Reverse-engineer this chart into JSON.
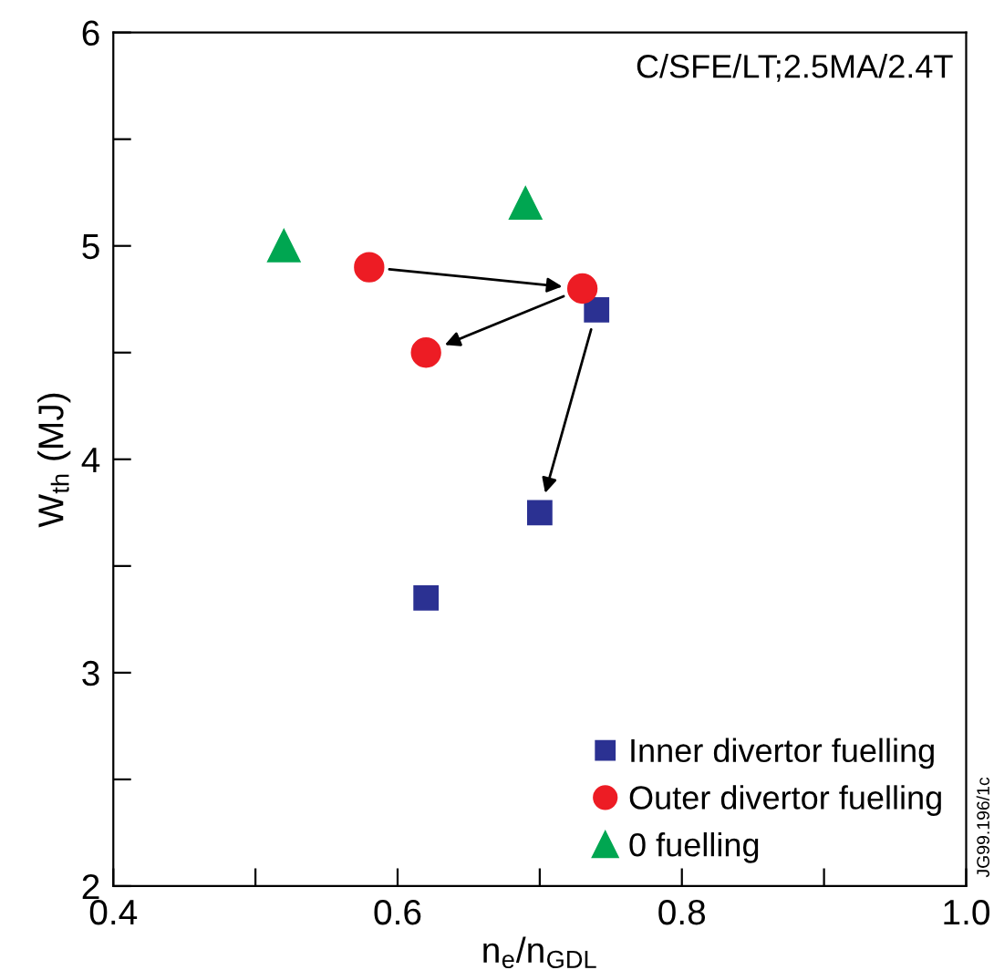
{
  "chart_data": {
    "type": "scatter",
    "xlabel": "n$_{e}$/n$_{GDL}$",
    "ylabel": "W$_{th}$ (MJ)",
    "annotations": [
      "C/SFE/LT;2.5MA/2.4T",
      "JG99.196/1c"
    ],
    "series": [
      {
        "name": "Inner divertor fuelling",
        "color": "#2b3192",
        "marker": "square",
        "x": [
          0.74,
          0.7,
          0.62
        ],
        "values": [
          4.7,
          3.75,
          3.35
        ]
      },
      {
        "name": "Outer divertor fuelling",
        "color": "#ed1c24",
        "marker": "circle",
        "x": [
          0.58,
          0.73,
          0.62
        ],
        "values": [
          4.9,
          4.8,
          4.5
        ]
      },
      {
        "name": "0 fuelling",
        "color": "#00a651",
        "marker": "triangle",
        "x": [
          0.52,
          0.69
        ],
        "values": [
          5.0,
          5.2
        ]
      }
    ],
    "xlim": [
      0.4,
      1.0
    ],
    "ylim": [
      2,
      6
    ],
    "xticks": [
      0.4,
      {
        "value": 0.5,
        "label": null
      },
      0.6,
      {
        "value": 0.7,
        "label": null
      },
      0.8,
      {
        "value": 0.9,
        "label": null
      },
      {
        "value": 1.0,
        "label": "1.0"
      }
    ],
    "yticks": [
      2,
      {
        "value": 2.5,
        "label": null
      },
      3,
      {
        "value": 3.5,
        "label": null
      },
      4,
      {
        "value": 4.5,
        "label": null
      },
      5,
      {
        "value": 5.5,
        "label": null
      },
      6
    ],
    "legend": "bottom right",
    "grid": false
  }
}
